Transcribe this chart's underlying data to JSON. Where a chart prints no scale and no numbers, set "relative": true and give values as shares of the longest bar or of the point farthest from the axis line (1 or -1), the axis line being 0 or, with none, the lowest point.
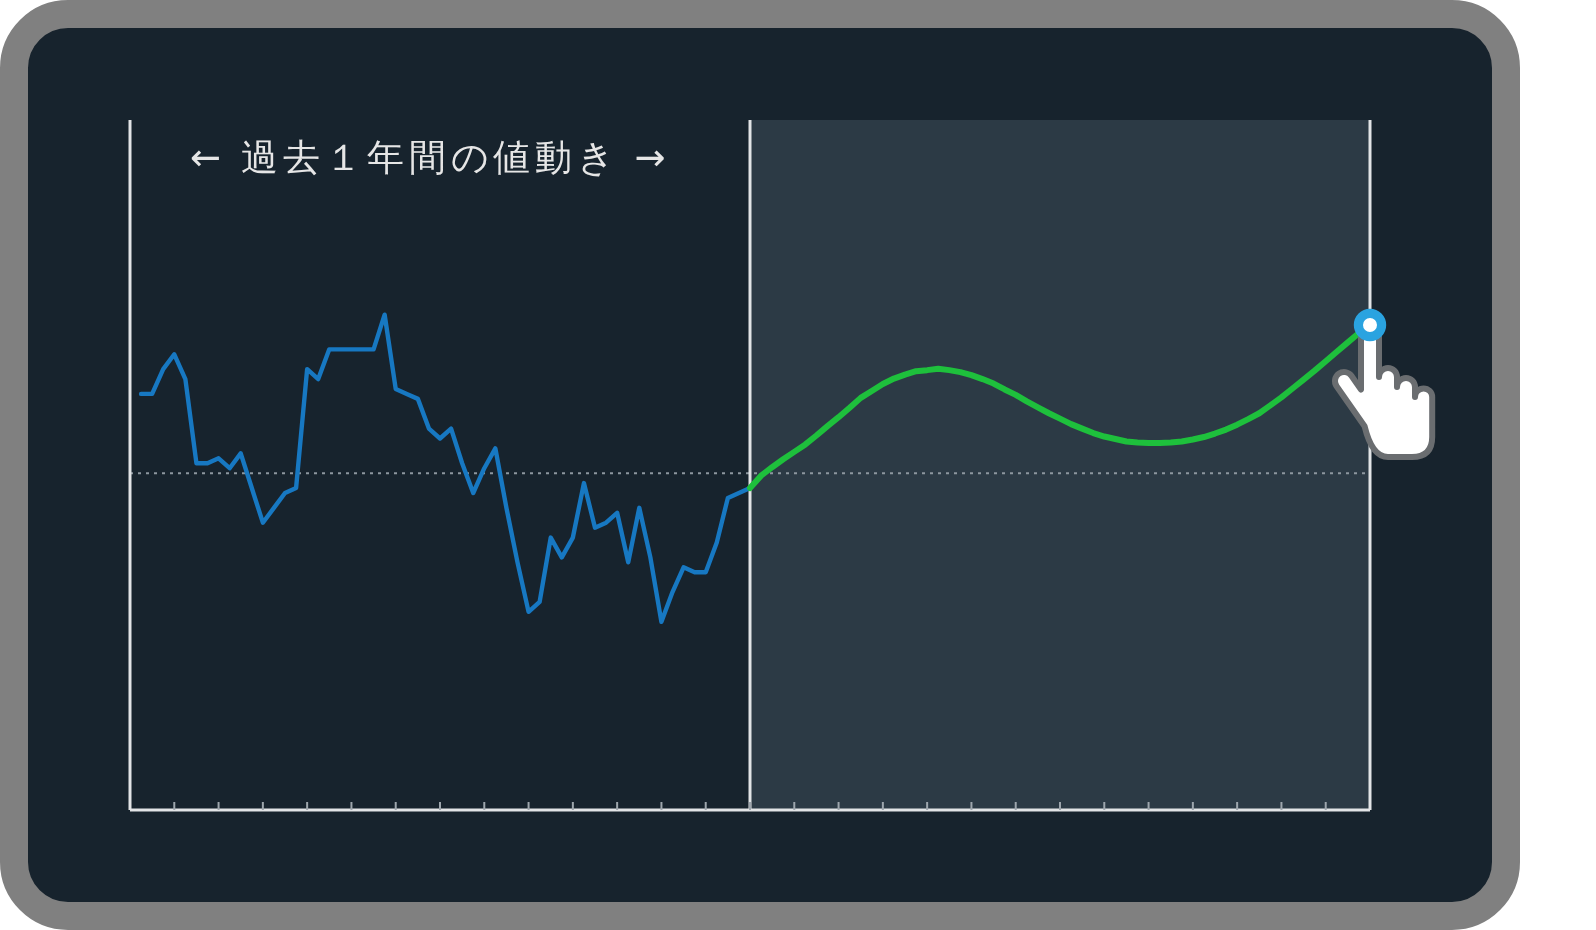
{
  "chart_data": {
    "type": "line",
    "relative": true,
    "annotations": [
      "← 過去１年間の値動き →"
    ],
    "categories": [
      null,
      null,
      null,
      null,
      null,
      null,
      null,
      null,
      null,
      null,
      null,
      null,
      null,
      null,
      null,
      null,
      null,
      null,
      null,
      null,
      null,
      null,
      null,
      null,
      null,
      null,
      null,
      null,
      null,
      null,
      null,
      null,
      null,
      null,
      null,
      null,
      null,
      null,
      null,
      null,
      null,
      null,
      null,
      null,
      null,
      null,
      null,
      null,
      null,
      null,
      null,
      null,
      null,
      null,
      null,
      null,
      null,
      null,
      null,
      null,
      null,
      null,
      null,
      null,
      null,
      null,
      null,
      null,
      null,
      null,
      null,
      null,
      null,
      null,
      null,
      null,
      null,
      null,
      null,
      null,
      null,
      null,
      null,
      null,
      null,
      null,
      null,
      null,
      null,
      null,
      null,
      null,
      null,
      null,
      null,
      null,
      null,
      null,
      null,
      null,
      null,
      null,
      null,
      null,
      null,
      null,
      null,
      null,
      null,
      null,
      null,
      null,
      null
    ],
    "series": [
      {
        "color": "#1778c2",
        "values": [
          null,
          0.84,
          0.84,
          0.89,
          0.92,
          0.87,
          0.7,
          0.7,
          0.71,
          0.69,
          0.72,
          0.65,
          0.58,
          0.61,
          0.64,
          0.65,
          0.89,
          0.87,
          0.93,
          0.93,
          0.93,
          0.93,
          0.93,
          1.0,
          0.85,
          0.84,
          0.83,
          0.77,
          0.75,
          0.77,
          0.7,
          0.64,
          0.69,
          0.73,
          0.61,
          0.5,
          0.4,
          0.42,
          0.55,
          0.51,
          0.55,
          0.66,
          0.57,
          0.58,
          0.6,
          0.5,
          0.61,
          0.51,
          0.38,
          0.44,
          0.49,
          0.48,
          0.48,
          0.54,
          0.63,
          0.64,
          0.65,
          null,
          null,
          null,
          null,
          null,
          null,
          null,
          null,
          null,
          null,
          null,
          null,
          null,
          null,
          null,
          null,
          null,
          null,
          null,
          null,
          null,
          null,
          null,
          null,
          null,
          null,
          null,
          null,
          null,
          null,
          null,
          null,
          null,
          null,
          null,
          null,
          null,
          null,
          null,
          null,
          null,
          null,
          null,
          null,
          null,
          null,
          null,
          null,
          null,
          null,
          null,
          null,
          null,
          null,
          null,
          null
        ]
      },
      {
        "color": "#1ec03c",
        "values": [
          null,
          null,
          null,
          null,
          null,
          null,
          null,
          null,
          null,
          null,
          null,
          null,
          null,
          null,
          null,
          null,
          null,
          null,
          null,
          null,
          null,
          null,
          null,
          null,
          null,
          null,
          null,
          null,
          null,
          null,
          null,
          null,
          null,
          null,
          null,
          null,
          null,
          null,
          null,
          null,
          null,
          null,
          null,
          null,
          null,
          null,
          null,
          null,
          null,
          null,
          null,
          null,
          null,
          null,
          null,
          null,
          0.65,
          0.675,
          0.692,
          0.708,
          0.723,
          0.738,
          0.756,
          0.775,
          0.793,
          0.812,
          0.832,
          0.846,
          0.86,
          0.871,
          0.879,
          0.886,
          0.888,
          0.891,
          0.888,
          0.884,
          0.878,
          0.87,
          0.861,
          0.849,
          0.838,
          0.825,
          0.813,
          0.801,
          0.79,
          0.779,
          0.77,
          0.761,
          0.754,
          0.749,
          0.744,
          0.742,
          0.741,
          0.741,
          0.742,
          0.744,
          0.748,
          0.753,
          0.76,
          0.768,
          0.778,
          0.789,
          0.801,
          0.817,
          0.833,
          0.851,
          0.869,
          0.887,
          0.906,
          0.925,
          0.944,
          0.963,
          0.979
        ]
      }
    ],
    "ref_lines": [
      {
        "axis": "y",
        "value": 0.68,
        "line_style": "dotted",
        "color": "#8d979f"
      }
    ]
  }
}
